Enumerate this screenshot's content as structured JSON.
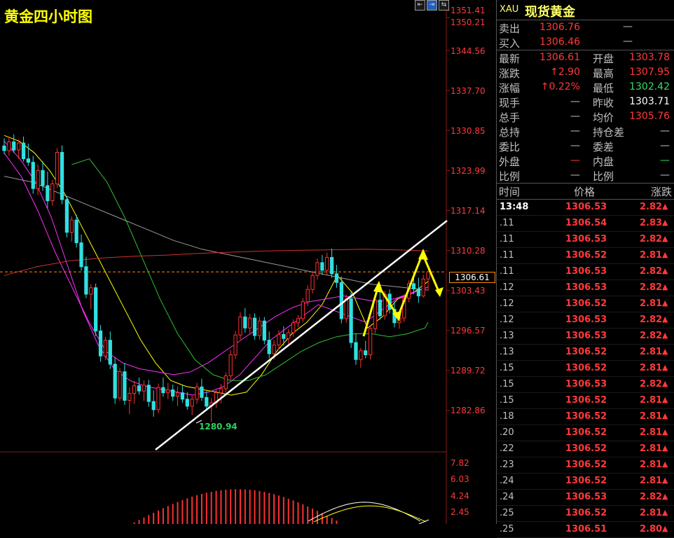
{
  "chart": {
    "title": "黄金四小时图",
    "toolbar": [
      "⇤",
      "⇥",
      "⇆"
    ],
    "price_axis": [
      "1351.41",
      "1350.21",
      "1344.56",
      "1337.70",
      "1330.85",
      "1323.99",
      "1317.14",
      "1310.28",
      "1303.43",
      "1296.57",
      "1289.72",
      "1282.86"
    ],
    "current_price": "1306.61",
    "low_marker": "1280.94",
    "macd_axis": [
      "7.82",
      "6.03",
      "4.24",
      "2.45"
    ],
    "colors": {
      "up_candle": "#ff3030",
      "down_candle": "#30e0e0",
      "ma_yellow": "#ffff00",
      "ma_magenta": "#ff30ff",
      "ma_green": "#30c030",
      "ma_grey": "#9a9a9a",
      "ma_red": "#d03030",
      "trendline": "#ffffff",
      "annotation": "#ffff00"
    }
  },
  "chart_data": {
    "type": "candlestick",
    "title": "黄金四小时图",
    "ylim": [
      1276,
      1352
    ],
    "y_ticks": [
      1351.41,
      1350.21,
      1344.56,
      1337.7,
      1330.85,
      1323.99,
      1317.14,
      1310.28,
      1303.43,
      1296.57,
      1289.72,
      1282.86
    ],
    "current_price": 1306.61,
    "low": 1280.94,
    "candles": [
      [
        1328.2,
        1329.5,
        1326.8,
        1327.4
      ],
      [
        1327.4,
        1329.8,
        1326.5,
        1328.9
      ],
      [
        1328.9,
        1330.2,
        1327.0,
        1327.5
      ],
      [
        1327.5,
        1329.3,
        1326.0,
        1328.7
      ],
      [
        1328.7,
        1329.8,
        1325.5,
        1326.0
      ],
      [
        1326.0,
        1328.6,
        1324.8,
        1325.4
      ],
      [
        1325.4,
        1326.5,
        1320.0,
        1320.9
      ],
      [
        1320.9,
        1325.0,
        1319.8,
        1324.0
      ],
      [
        1324.0,
        1325.6,
        1320.5,
        1321.4
      ],
      [
        1321.4,
        1323.8,
        1317.5,
        1318.8
      ],
      [
        1318.8,
        1322.4,
        1318.0,
        1321.7
      ],
      [
        1321.7,
        1327.8,
        1321.0,
        1327.1
      ],
      [
        1327.1,
        1328.3,
        1318.2,
        1319.0
      ],
      [
        1319.0,
        1319.6,
        1312.5,
        1313.4
      ],
      [
        1313.4,
        1316.1,
        1311.8,
        1315.5
      ],
      [
        1315.5,
        1316.4,
        1310.8,
        1311.6
      ],
      [
        1311.6,
        1313.0,
        1306.8,
        1307.5
      ],
      [
        1307.5,
        1309.2,
        1302.1,
        1302.8
      ],
      [
        1302.8,
        1304.5,
        1300.2,
        1303.9
      ],
      [
        1303.9,
        1304.6,
        1295.6,
        1296.5
      ],
      [
        1296.5,
        1297.5,
        1291.2,
        1292.2
      ],
      [
        1292.2,
        1295.5,
        1291.5,
        1294.9
      ],
      [
        1294.9,
        1296.4,
        1290.0,
        1290.8
      ],
      [
        1290.8,
        1292.0,
        1284.0,
        1285.0
      ],
      [
        1285.0,
        1290.1,
        1284.5,
        1289.5
      ],
      [
        1289.5,
        1291.0,
        1283.8,
        1284.6
      ],
      [
        1284.6,
        1286.8,
        1282.2,
        1285.8
      ],
      [
        1285.8,
        1287.9,
        1284.0,
        1287.1
      ],
      [
        1287.1,
        1288.5,
        1285.6,
        1286.2
      ],
      [
        1286.2,
        1288.0,
        1284.5,
        1287.2
      ],
      [
        1287.2,
        1288.1,
        1283.5,
        1284.4
      ],
      [
        1284.4,
        1286.3,
        1281.8,
        1283.0
      ],
      [
        1283.0,
        1287.5,
        1282.4,
        1286.8
      ],
      [
        1286.8,
        1288.5,
        1285.2,
        1285.9
      ],
      [
        1285.9,
        1287.6,
        1284.8,
        1286.4
      ],
      [
        1286.4,
        1287.3,
        1284.5,
        1285.3
      ],
      [
        1285.3,
        1287.0,
        1283.6,
        1285.9
      ],
      [
        1285.9,
        1287.2,
        1284.2,
        1284.8
      ],
      [
        1284.8,
        1286.0,
        1283.0,
        1283.6
      ],
      [
        1283.6,
        1285.4,
        1282.1,
        1284.8
      ],
      [
        1284.8,
        1287.6,
        1284.0,
        1286.9
      ],
      [
        1286.9,
        1288.3,
        1284.5,
        1285.1
      ],
      [
        1285.1,
        1286.2,
        1282.8,
        1283.6
      ],
      [
        1283.6,
        1285.0,
        1280.94,
        1284.2
      ],
      [
        1284.2,
        1286.5,
        1283.3,
        1285.9
      ],
      [
        1285.9,
        1287.4,
        1284.1,
        1286.6
      ],
      [
        1286.6,
        1289.4,
        1285.9,
        1288.8
      ],
      [
        1288.8,
        1293.2,
        1288.1,
        1292.4
      ],
      [
        1292.4,
        1296.5,
        1291.7,
        1295.8
      ],
      [
        1295.8,
        1299.7,
        1295.0,
        1298.9
      ],
      [
        1298.9,
        1300.4,
        1296.2,
        1297.0
      ],
      [
        1297.0,
        1299.4,
        1296.1,
        1298.7
      ],
      [
        1298.7,
        1299.5,
        1295.0,
        1295.7
      ],
      [
        1295.7,
        1298.9,
        1295.0,
        1298.2
      ],
      [
        1298.2,
        1298.9,
        1294.2,
        1294.9
      ],
      [
        1294.9,
        1296.4,
        1291.8,
        1292.6
      ],
      [
        1292.6,
        1294.9,
        1291.6,
        1294.1
      ],
      [
        1294.1,
        1296.6,
        1293.3,
        1295.9
      ],
      [
        1295.9,
        1297.3,
        1294.0,
        1295.2
      ],
      [
        1295.2,
        1296.8,
        1294.3,
        1296.2
      ],
      [
        1296.2,
        1298.5,
        1295.5,
        1297.9
      ],
      [
        1297.9,
        1299.2,
        1297.1,
        1298.6
      ],
      [
        1298.6,
        1302.1,
        1298.0,
        1301.5
      ],
      [
        1301.5,
        1304.3,
        1300.8,
        1303.6
      ],
      [
        1303.6,
        1306.8,
        1302.9,
        1306.0
      ],
      [
        1306.0,
        1308.9,
        1305.3,
        1308.2
      ],
      [
        1308.2,
        1309.5,
        1306.1,
        1306.9
      ],
      [
        1306.9,
        1309.9,
        1306.0,
        1309.1
      ],
      [
        1309.1,
        1310.6,
        1305.6,
        1306.3
      ],
      [
        1306.3,
        1307.8,
        1303.9,
        1304.8
      ],
      [
        1304.8,
        1305.8,
        1297.8,
        1298.6
      ],
      [
        1298.6,
        1302.7,
        1297.9,
        1302.0
      ],
      [
        1302.0,
        1303.2,
        1293.6,
        1294.5
      ],
      [
        1294.5,
        1296.1,
        1290.7,
        1291.6
      ],
      [
        1291.6,
        1293.6,
        1290.2,
        1293.1
      ],
      [
        1293.1,
        1294.8,
        1291.8,
        1292.4
      ],
      [
        1292.4,
        1297.4,
        1291.6,
        1296.9
      ],
      [
        1296.9,
        1302.3,
        1296.1,
        1301.8
      ],
      [
        1301.8,
        1304.2,
        1298.4,
        1299.1
      ],
      [
        1299.1,
        1303.4,
        1298.4,
        1302.8
      ],
      [
        1302.8,
        1303.6,
        1299.5,
        1300.2
      ],
      [
        1300.2,
        1301.5,
        1297.1,
        1297.9
      ],
      [
        1297.9,
        1299.4,
        1296.9,
        1298.7
      ],
      [
        1298.7,
        1302.8,
        1298.0,
        1302.1
      ],
      [
        1302.1,
        1305.2,
        1301.4,
        1304.6
      ],
      [
        1304.6,
        1306.5,
        1302.8,
        1303.7
      ],
      [
        1303.7,
        1305.6,
        1301.3,
        1302.5
      ],
      [
        1302.5,
        1306.1,
        1302.2,
        1305.4
      ],
      [
        1305.4,
        1306.9,
        1303.4,
        1306.61
      ]
    ],
    "series": [
      {
        "values": [
          1330.0,
          1329.0,
          1327.0,
          1324.0,
          1320.0,
          1315.0,
          1310.0,
          1305.0,
          1300.0,
          1295.0,
          1291.0,
          1288.0,
          1287.0,
          1286.5,
          1286.0,
          1285.5,
          1286.0,
          1289.0,
          1293.0,
          1296.0,
          1298.0,
          1301.0,
          1306.0,
          1303.0,
          1297.0,
          1299.0,
          1302.0,
          1303.0,
          1305.0
        ]
      },
      {
        "values": [
          1329.0,
          1326.0,
          1322.0,
          1316.0,
          1308.0,
          1300.0,
          1294.0,
          1290.0,
          1288.0,
          1287.0,
          1286.5,
          1286.0,
          1285.5,
          1286.0,
          1287.0,
          1289.0,
          1292.0,
          1295.0,
          1297.0,
          1299.0,
          1301.0,
          1300.0,
          1299.0,
          1298.0,
          1300.0,
          1302.0,
          1303.0,
          1304.0
        ]
      },
      {
        "values": [
          1327.0,
          1323.0,
          1317.0,
          1310.0,
          1304.0,
          1298.0,
          1293.0,
          1291.0,
          1290.0,
          1289.5,
          1289.0,
          1289.5,
          1291.0,
          1293.0,
          1295.0,
          1297.0,
          1299.0,
          1300.5,
          1301.5,
          1302.0,
          1302.5,
          1302.0,
          1301.5,
          1302.0,
          1303.0,
          1304.0
        ]
      },
      {
        "values": [
          1325.0,
          1326.0,
          1322.0,
          1316.0,
          1309.0,
          1302.0,
          1296.0,
          1291.5,
          1289.0,
          1288.0,
          1288.0,
          1289.0,
          1291.0,
          1293.0,
          1294.5,
          1295.5,
          1296.0,
          1296.0,
          1295.5,
          1296.0,
          1297.0,
          1298.0
        ]
      },
      {
        "values": [
          1323.0,
          1322.0,
          1320.0,
          1318.0,
          1316.0,
          1314.0,
          1312.0,
          1310.5,
          1309.5,
          1308.5,
          1307.5,
          1306.5,
          1305.5,
          1304.5,
          1304.0,
          1303.5
        ]
      },
      {
        "values": [
          1306.0,
          1307.5,
          1308.5,
          1309.0,
          1309.3,
          1309.5,
          1309.8,
          1310.0,
          1310.2,
          1310.3,
          1310.4,
          1310.5,
          1310.4,
          1310.2
        ]
      }
    ],
    "macd": {
      "ylim": [
        0,
        8.5
      ],
      "y_ticks": [
        7.82,
        6.03,
        4.24,
        2.45
      ]
    }
  },
  "quote": {
    "code": "XAU",
    "name": "现货黄金",
    "sell_label": "卖出",
    "sell_value": "1306.76",
    "sell_extra": "—",
    "buy_label": "买入",
    "buy_value": "1306.46",
    "buy_extra": "—",
    "rows": [
      {
        "l1": "最新",
        "v1": "1306.61",
        "c1": "red",
        "l2": "开盘",
        "v2": "1303.78",
        "c2": "red"
      },
      {
        "l1": "涨跌",
        "v1": "↑2.90",
        "c1": "red",
        "l2": "最高",
        "v2": "1307.95",
        "c2": "red"
      },
      {
        "l1": "涨幅",
        "v1": "↑0.22%",
        "c1": "red",
        "l2": "最低",
        "v2": "1302.42",
        "c2": "green"
      },
      {
        "l1": "现手",
        "v1": "—",
        "c1": "grey",
        "l2": "昨收",
        "v2": "1303.71",
        "c2": "white"
      },
      {
        "l1": "总手",
        "v1": "—",
        "c1": "grey",
        "l2": "均价",
        "v2": "1305.76",
        "c2": "red"
      },
      {
        "l1": "总持",
        "v1": "—",
        "c1": "grey",
        "l2": "持仓差",
        "v2": "—",
        "c2": "grey"
      },
      {
        "l1": "委比",
        "v1": "—",
        "c1": "grey",
        "l2": "委差",
        "v2": "—",
        "c2": "grey"
      },
      {
        "l1": "外盘",
        "v1": "—",
        "c1": "red",
        "l2": "内盘",
        "v2": "—",
        "c2": "green"
      },
      {
        "l1": "比例",
        "v1": "—",
        "c1": "grey",
        "l2": "比例",
        "v2": "—",
        "c2": "grey"
      }
    ],
    "ticks_header": {
      "time": "时间",
      "price": "价格",
      "change": "涨跌"
    },
    "ticks": [
      {
        "time": "13:48",
        "price": "1306.53",
        "change": "2.82"
      },
      {
        "time": ".11",
        "price": "1306.54",
        "change": "2.83"
      },
      {
        "time": ".11",
        "price": "1306.53",
        "change": "2.82"
      },
      {
        "time": ".11",
        "price": "1306.52",
        "change": "2.81"
      },
      {
        "time": ".11",
        "price": "1306.53",
        "change": "2.82"
      },
      {
        "time": ".12",
        "price": "1306.53",
        "change": "2.82"
      },
      {
        "time": ".12",
        "price": "1306.52",
        "change": "2.81"
      },
      {
        "time": ".12",
        "price": "1306.53",
        "change": "2.82"
      },
      {
        "time": ".13",
        "price": "1306.53",
        "change": "2.82"
      },
      {
        "time": ".13",
        "price": "1306.52",
        "change": "2.81"
      },
      {
        "time": ".15",
        "price": "1306.52",
        "change": "2.81"
      },
      {
        "time": ".15",
        "price": "1306.53",
        "change": "2.82"
      },
      {
        "time": ".15",
        "price": "1306.52",
        "change": "2.81"
      },
      {
        "time": ".18",
        "price": "1306.52",
        "change": "2.81"
      },
      {
        "time": ".20",
        "price": "1306.52",
        "change": "2.81"
      },
      {
        "time": ".22",
        "price": "1306.52",
        "change": "2.81"
      },
      {
        "time": ".23",
        "price": "1306.52",
        "change": "2.81"
      },
      {
        "time": ".24",
        "price": "1306.52",
        "change": "2.81"
      },
      {
        "time": ".24",
        "price": "1306.53",
        "change": "2.82"
      },
      {
        "time": ".25",
        "price": "1306.52",
        "change": "2.81"
      },
      {
        "time": ".25",
        "price": "1306.51",
        "change": "2.80"
      }
    ]
  }
}
